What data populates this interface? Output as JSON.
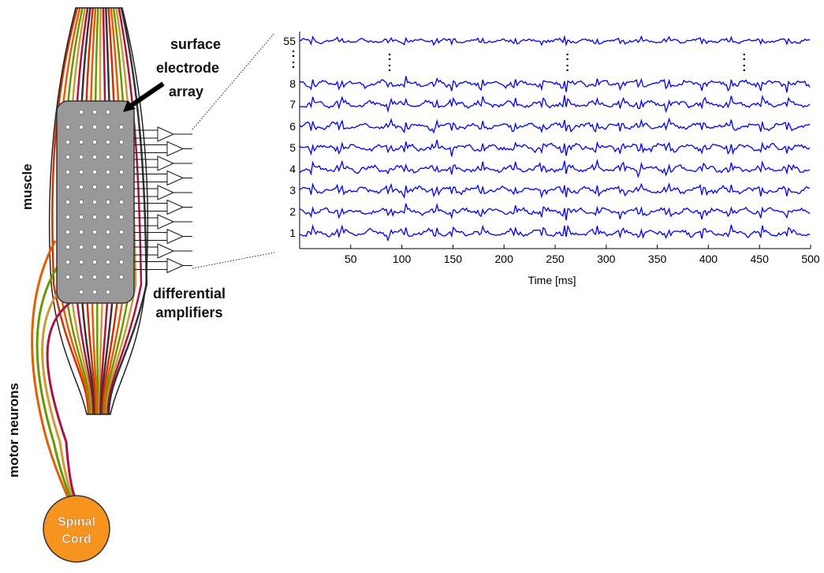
{
  "labels": {
    "muscle": "muscle",
    "motor_neurons": "motor neurons",
    "surface_electrode_array": [
      "surface",
      "electrode",
      "array"
    ],
    "differential_amplifiers": [
      "differential",
      "amplifiers"
    ],
    "spinal_cord": [
      "Spinal",
      "Cord"
    ]
  },
  "colors": {
    "signal": "#0000ee",
    "spinal_cord": "#f7941d",
    "electrode_array": "#999999",
    "nerve_fibers": [
      "#cc3300",
      "#e65c00",
      "#669900",
      "#cc9933",
      "#aa1144",
      "#333333"
    ]
  },
  "chart_data": {
    "type": "line",
    "title": "",
    "xlabel": "Time [ms]",
    "ylabel": "",
    "xlim": [
      0,
      500
    ],
    "xticks": [
      50,
      100,
      150,
      200,
      250,
      300,
      350,
      400,
      450,
      500
    ],
    "channel_labels": [
      "55",
      "8",
      "7",
      "6",
      "5",
      "4",
      "3",
      "2",
      "1"
    ],
    "ellipsis_marker": ":",
    "series_note": "9 displayed EMG channels (1-8 and 55); vertical ellipses mark omitted channels 9-54",
    "grid": false,
    "legend": "none"
  }
}
